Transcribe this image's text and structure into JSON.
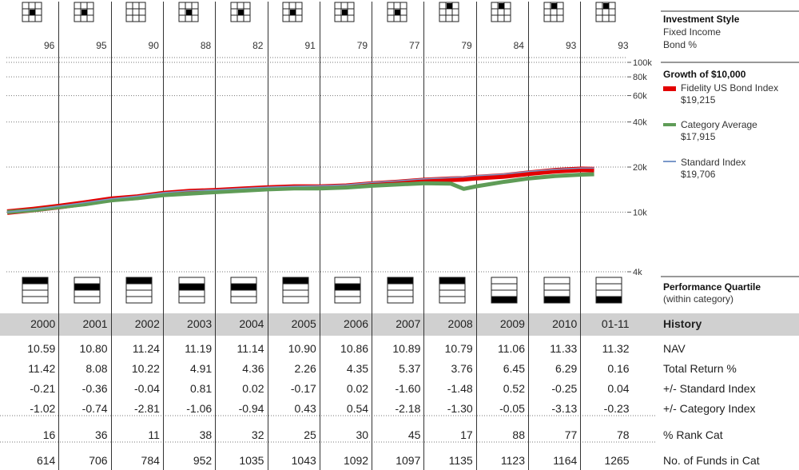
{
  "chart_data": {
    "type": "line",
    "y_scale": "log",
    "ylim": [
      4000,
      100000
    ],
    "y_tick_labels": [
      "100k",
      "80k",
      "60k",
      "40k",
      "20k",
      "10k",
      "4k"
    ],
    "y_ticks": [
      100000,
      80000,
      60000,
      40000,
      20000,
      10000,
      4000
    ],
    "x_start": 2000.0,
    "x_end": 2011.25,
    "series": [
      {
        "name": "Fidelity US Bond Index",
        "color": "#e30000",
        "points": [
          [
            2000.0,
            10000
          ],
          [
            2000.5,
            10400
          ],
          [
            2001.0,
            10900
          ],
          [
            2001.5,
            11500
          ],
          [
            2002.0,
            12200
          ],
          [
            2002.5,
            12600
          ],
          [
            2003.0,
            13300
          ],
          [
            2003.5,
            13700
          ],
          [
            2004.0,
            13900
          ],
          [
            2004.5,
            14200
          ],
          [
            2005.0,
            14500
          ],
          [
            2005.5,
            14700
          ],
          [
            2006.0,
            14700
          ],
          [
            2006.5,
            14900
          ],
          [
            2007.0,
            15400
          ],
          [
            2007.5,
            15800
          ],
          [
            2008.0,
            16300
          ],
          [
            2008.5,
            16600
          ],
          [
            2008.75,
            16700
          ],
          [
            2009.0,
            17000
          ],
          [
            2009.5,
            17400
          ],
          [
            2010.0,
            18200
          ],
          [
            2010.5,
            18900
          ],
          [
            2011.0,
            19300
          ],
          [
            2011.25,
            19215
          ]
        ],
        "label": "$19,215"
      },
      {
        "name": "Category Average",
        "color": "#5f9c57",
        "points": [
          [
            2000.0,
            10000
          ],
          [
            2000.5,
            10300
          ],
          [
            2001.0,
            10800
          ],
          [
            2001.5,
            11300
          ],
          [
            2002.0,
            12000
          ],
          [
            2002.5,
            12400
          ],
          [
            2003.0,
            13000
          ],
          [
            2003.5,
            13300
          ],
          [
            2004.0,
            13600
          ],
          [
            2004.5,
            13900
          ],
          [
            2005.0,
            14200
          ],
          [
            2005.5,
            14400
          ],
          [
            2006.0,
            14400
          ],
          [
            2006.5,
            14600
          ],
          [
            2007.0,
            15000
          ],
          [
            2007.5,
            15300
          ],
          [
            2008.0,
            15600
          ],
          [
            2008.5,
            15500
          ],
          [
            2008.75,
            14300
          ],
          [
            2009.0,
            14900
          ],
          [
            2009.5,
            15900
          ],
          [
            2010.0,
            16800
          ],
          [
            2010.5,
            17400
          ],
          [
            2011.0,
            17800
          ],
          [
            2011.25,
            17915
          ]
        ],
        "label": "$17,915"
      },
      {
        "name": "Standard Index",
        "color": "#7a98c9",
        "points": [
          [
            2000.0,
            10000
          ],
          [
            2000.5,
            10400
          ],
          [
            2001.0,
            11000
          ],
          [
            2001.5,
            11600
          ],
          [
            2002.0,
            12300
          ],
          [
            2002.5,
            12800
          ],
          [
            2003.0,
            13500
          ],
          [
            2003.5,
            13900
          ],
          [
            2004.0,
            14100
          ],
          [
            2004.5,
            14400
          ],
          [
            2005.0,
            14700
          ],
          [
            2005.5,
            14900
          ],
          [
            2006.0,
            15000
          ],
          [
            2006.5,
            15200
          ],
          [
            2007.0,
            15800
          ],
          [
            2007.5,
            16200
          ],
          [
            2008.0,
            16700
          ],
          [
            2008.5,
            17000
          ],
          [
            2008.75,
            17200
          ],
          [
            2009.0,
            17500
          ],
          [
            2009.5,
            17900
          ],
          [
            2010.0,
            18700
          ],
          [
            2010.5,
            19300
          ],
          [
            2011.0,
            19700
          ],
          [
            2011.25,
            19706
          ]
        ],
        "label": "$19,706"
      }
    ]
  },
  "columns": [
    "2000",
    "2001",
    "2002",
    "2003",
    "2004",
    "2005",
    "2006",
    "2007",
    "2008",
    "2009",
    "2010",
    "01-11"
  ],
  "style_box": {
    "bond_pct": [
      "96",
      "95",
      "90",
      "88",
      "82",
      "91",
      "79",
      "77",
      "79",
      "84",
      "93",
      "93"
    ],
    "cell": [
      [
        1,
        1
      ],
      [
        1,
        1
      ],
      null,
      [
        1,
        1
      ],
      [
        1,
        1
      ],
      [
        1,
        1
      ],
      [
        1,
        1
      ],
      [
        1,
        1
      ],
      [
        0,
        1
      ],
      [
        0,
        1
      ],
      [
        0,
        1
      ],
      [
        0,
        1
      ]
    ]
  },
  "quartile": [
    1,
    2,
    1,
    2,
    2,
    1,
    2,
    1,
    1,
    4,
    4,
    4
  ],
  "history": {
    "nav": [
      "10.59",
      "10.80",
      "11.24",
      "11.19",
      "11.14",
      "10.90",
      "10.86",
      "10.89",
      "10.79",
      "11.06",
      "11.33",
      "11.32"
    ],
    "total_return": [
      "11.42",
      "8.08",
      "10.22",
      "4.91",
      "4.36",
      "2.26",
      "4.35",
      "5.37",
      "3.76",
      "6.45",
      "6.29",
      "0.16"
    ],
    "vs_standard": [
      "-0.21",
      "-0.36",
      "-0.04",
      "0.81",
      "0.02",
      "-0.17",
      "0.02",
      "-1.60",
      "-1.48",
      "0.52",
      "-0.25",
      "0.04"
    ],
    "vs_category": [
      "-1.02",
      "-0.74",
      "-2.81",
      "-1.06",
      "-0.94",
      "0.43",
      "0.54",
      "-2.18",
      "-1.30",
      "-0.05",
      "-3.13",
      "-0.23"
    ],
    "rank_cat": [
      "16",
      "36",
      "11",
      "38",
      "32",
      "25",
      "30",
      "45",
      "17",
      "88",
      "77",
      "78"
    ],
    "funds_in_cat": [
      "614",
      "706",
      "784",
      "952",
      "1035",
      "1043",
      "1092",
      "1097",
      "1135",
      "1123",
      "1164",
      "1265"
    ]
  },
  "labels": {
    "investment_style": "Investment Style",
    "fixed_income": "Fixed Income",
    "bond_pct": "Bond %",
    "growth_title": "Growth of $10,000",
    "perf_quartile": "Performance Quartile",
    "within_category": "(within category)",
    "history": "History",
    "nav": "NAV",
    "total_return": "Total Return %",
    "vs_standard": "+/- Standard Index",
    "vs_category": "+/- Category Index",
    "rank_cat": "% Rank Cat",
    "funds_in_cat": "No. of Funds in Cat"
  }
}
